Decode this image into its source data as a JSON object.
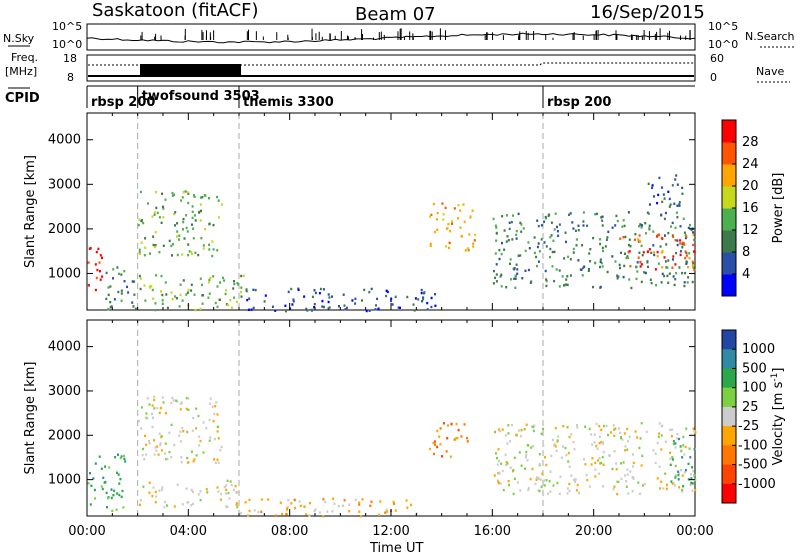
{
  "header": {
    "station": "Saskatoon (fitACF)",
    "beam": "Beam 07",
    "date": "16/Sep/2015"
  },
  "top_panels": {
    "nsky_label": "N.Sky",
    "nsky_ticks": [
      "10^5",
      "10^0"
    ],
    "nsearch_ticks": [
      "10^5",
      "10^0"
    ],
    "nsearch_label": "N.Search",
    "freq_label_1": "Freq.",
    "freq_label_2": "[MHz]",
    "freq_ticks": [
      "18",
      "8"
    ],
    "nave_ticks": [
      "60",
      "0"
    ],
    "nave_label": "Nave",
    "cpid_label": "CPID"
  },
  "cpid": [
    {
      "name": "rbsp 200",
      "start": 0.0
    },
    {
      "name": "twofsound 3503",
      "start": 2.0
    },
    {
      "name": "themis 3300",
      "start": 6.0
    },
    {
      "name": "rbsp 200",
      "start": 18.0
    }
  ],
  "chart_data": [
    {
      "type": "heatmap",
      "quantity": "power",
      "ylabel": "Slant Range [km]",
      "xlim": [
        0,
        24
      ],
      "ylim": [
        180,
        4600
      ],
      "y_ticks": [
        "1000",
        "2000",
        "3000",
        "4000"
      ],
      "colorbar": {
        "label": "Power [dB]",
        "ticks": [
          "4",
          "8",
          "12",
          "16",
          "20",
          "24",
          "28"
        ],
        "colors": [
          "#0000ff",
          "#2a4fa8",
          "#3d7a4a",
          "#4caf50",
          "#c6d81c",
          "#ffa500",
          "#ff5500",
          "#ff0000"
        ]
      },
      "regions": [
        {
          "t0": 0.0,
          "t1": 0.7,
          "r0": 600,
          "r1": 1600,
          "level": 7
        },
        {
          "t0": 0.7,
          "t1": 2.0,
          "r0": 180,
          "r1": 1200,
          "level": 2
        },
        {
          "t0": 2.0,
          "t1": 6.2,
          "r0": 200,
          "r1": 1000,
          "level": 3
        },
        {
          "t0": 2.0,
          "t1": 5.3,
          "r0": 1400,
          "r1": 2900,
          "level": 3
        },
        {
          "t0": 6.0,
          "t1": 14.0,
          "r0": 180,
          "r1": 700,
          "level": 1
        },
        {
          "t0": 13.5,
          "t1": 15.3,
          "r0": 1500,
          "r1": 2600,
          "level": 5
        },
        {
          "t0": 16.0,
          "t1": 24.0,
          "r0": 700,
          "r1": 2400,
          "level": 2
        },
        {
          "t0": 21.0,
          "t1": 24.0,
          "r0": 1100,
          "r1": 1900,
          "level": 6
        },
        {
          "t0": 22.0,
          "t1": 23.5,
          "r0": 2500,
          "r1": 3300,
          "level": 1
        }
      ]
    },
    {
      "type": "heatmap",
      "quantity": "velocity",
      "xlabel": "Time UT",
      "ylabel": "Slant Range [km]",
      "xlim": [
        0,
        24
      ],
      "ylim": [
        180,
        4600
      ],
      "x_ticks": [
        "00:00",
        "04:00",
        "08:00",
        "12:00",
        "16:00",
        "20:00",
        "00:00"
      ],
      "y_ticks": [
        "1000",
        "2000",
        "3000",
        "4000"
      ],
      "colorbar": {
        "label": "Velocity [m s^-1]",
        "ticks": [
          "1000",
          "500",
          "100",
          "25",
          "-25",
          "-100",
          "-500",
          "-1000"
        ],
        "colors": [
          "#2146a3",
          "#2f8aa5",
          "#2aa84a",
          "#7cd143",
          "#cccccc",
          "#ffa500",
          "#ff7700",
          "#ff4400",
          "#ff0000"
        ]
      },
      "regions": [
        {
          "t0": 0.0,
          "t1": 1.5,
          "r0": 300,
          "r1": 1600,
          "level": 2
        },
        {
          "t0": 2.0,
          "t1": 6.0,
          "r0": 400,
          "r1": 1000,
          "level": 4
        },
        {
          "t0": 2.0,
          "t1": 5.3,
          "r0": 1400,
          "r1": 2900,
          "level": 4
        },
        {
          "t0": 6.0,
          "t1": 13.0,
          "r0": 180,
          "r1": 600,
          "level": 5
        },
        {
          "t0": 13.5,
          "t1": 15.0,
          "r0": 1500,
          "r1": 2300,
          "level": 6
        },
        {
          "t0": 16.0,
          "t1": 24.0,
          "r0": 700,
          "r1": 2300,
          "level": 4
        },
        {
          "t0": 23.0,
          "t1": 24.0,
          "r0": 800,
          "r1": 2000,
          "level": 2
        }
      ]
    }
  ]
}
